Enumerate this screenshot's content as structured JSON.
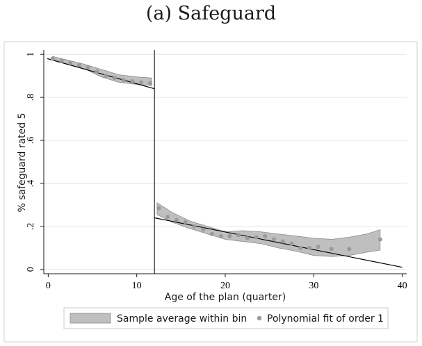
{
  "chart_data": {
    "type": "scatter",
    "title": "(a) Safeguard",
    "xlabel": "Age of the plan (quarter)",
    "ylabel": "% safeguard rated 5",
    "xlim": [
      -0.5,
      40.5
    ],
    "ylim": [
      -0.02,
      1.02
    ],
    "xticks": [
      {
        "value": 0,
        "label": "0"
      },
      {
        "value": 10,
        "label": "10"
      },
      {
        "value": 20,
        "label": "20"
      },
      {
        "value": 30,
        "label": "30"
      },
      {
        "value": 40,
        "label": "40"
      }
    ],
    "yticks": [
      {
        "value": 0,
        "label": "0"
      },
      {
        "value": 0.2,
        "label": ".2"
      },
      {
        "value": 0.4,
        "label": ".4"
      },
      {
        "value": 0.6,
        "label": ".6"
      },
      {
        "value": 0.8,
        "label": ".8"
      },
      {
        "value": 1.0,
        "label": "1"
      }
    ],
    "cutoff_x": 12,
    "grid": "horizontal",
    "legend_position": "bottom",
    "legend": [
      {
        "key": "band",
        "label": "Sample average within bin"
      },
      {
        "key": "points",
        "label": "Polynomial fit of order 1"
      }
    ],
    "colors": {
      "band": "#bfbfbf",
      "band_edge": "#8c8c8c",
      "points": "#9a9a9a",
      "line": "#000000",
      "grid": "#e6e6e6",
      "frame": "#d0d0d0"
    },
    "series": [
      {
        "key": "points",
        "x": [
          0.5,
          1.5,
          2.5,
          3.5,
          4.5,
          5.5,
          6.5,
          7.5,
          8.5,
          9.5,
          10.5,
          11.5,
          12.5,
          13.5,
          14.5,
          15.5,
          16.5,
          17.5,
          18.5,
          19.5,
          20.5,
          21.5,
          22.5,
          23.5,
          24.5,
          25.5,
          26.5,
          27.5,
          28.5,
          29.5,
          30.5,
          32,
          34,
          37.5
        ],
        "y": [
          0.98,
          0.97,
          0.96,
          0.95,
          0.94,
          0.92,
          0.9,
          0.89,
          0.88,
          0.875,
          0.87,
          0.865,
          0.285,
          0.245,
          0.23,
          0.22,
          0.2,
          0.185,
          0.165,
          0.155,
          0.155,
          0.16,
          0.145,
          0.15,
          0.155,
          0.14,
          0.13,
          0.12,
          0.1,
          0.1,
          0.105,
          0.095,
          0.095,
          0.14
        ]
      },
      {
        "key": "band",
        "segments": [
          {
            "x": [
              0.5,
              2,
              4,
              6,
              8,
              10,
              11.7
            ],
            "upper": [
              0.99,
              0.975,
              0.955,
              0.93,
              0.905,
              0.895,
              0.89
            ],
            "lower": [
              0.975,
              0.955,
              0.935,
              0.895,
              0.87,
              0.86,
              0.855
            ]
          },
          {
            "x": [
              12.3,
              14,
              16,
              18,
              20,
              22,
              24,
              26,
              28,
              30,
              32,
              34,
              36,
              37.5
            ],
            "upper": [
              0.31,
              0.265,
              0.225,
              0.2,
              0.175,
              0.18,
              0.175,
              0.165,
              0.155,
              0.145,
              0.14,
              0.15,
              0.165,
              0.185
            ],
            "lower": [
              0.255,
              0.22,
              0.19,
              0.165,
              0.14,
              0.13,
              0.12,
              0.1,
              0.085,
              0.065,
              0.06,
              0.065,
              0.08,
              0.09
            ]
          }
        ]
      },
      {
        "key": "line",
        "segments": [
          {
            "x": [
              -0.1,
              12
            ],
            "y": [
              0.98,
              0.84
            ]
          },
          {
            "x": [
              12,
              40
            ],
            "y": [
              0.24,
              0.01
            ]
          }
        ]
      }
    ]
  }
}
